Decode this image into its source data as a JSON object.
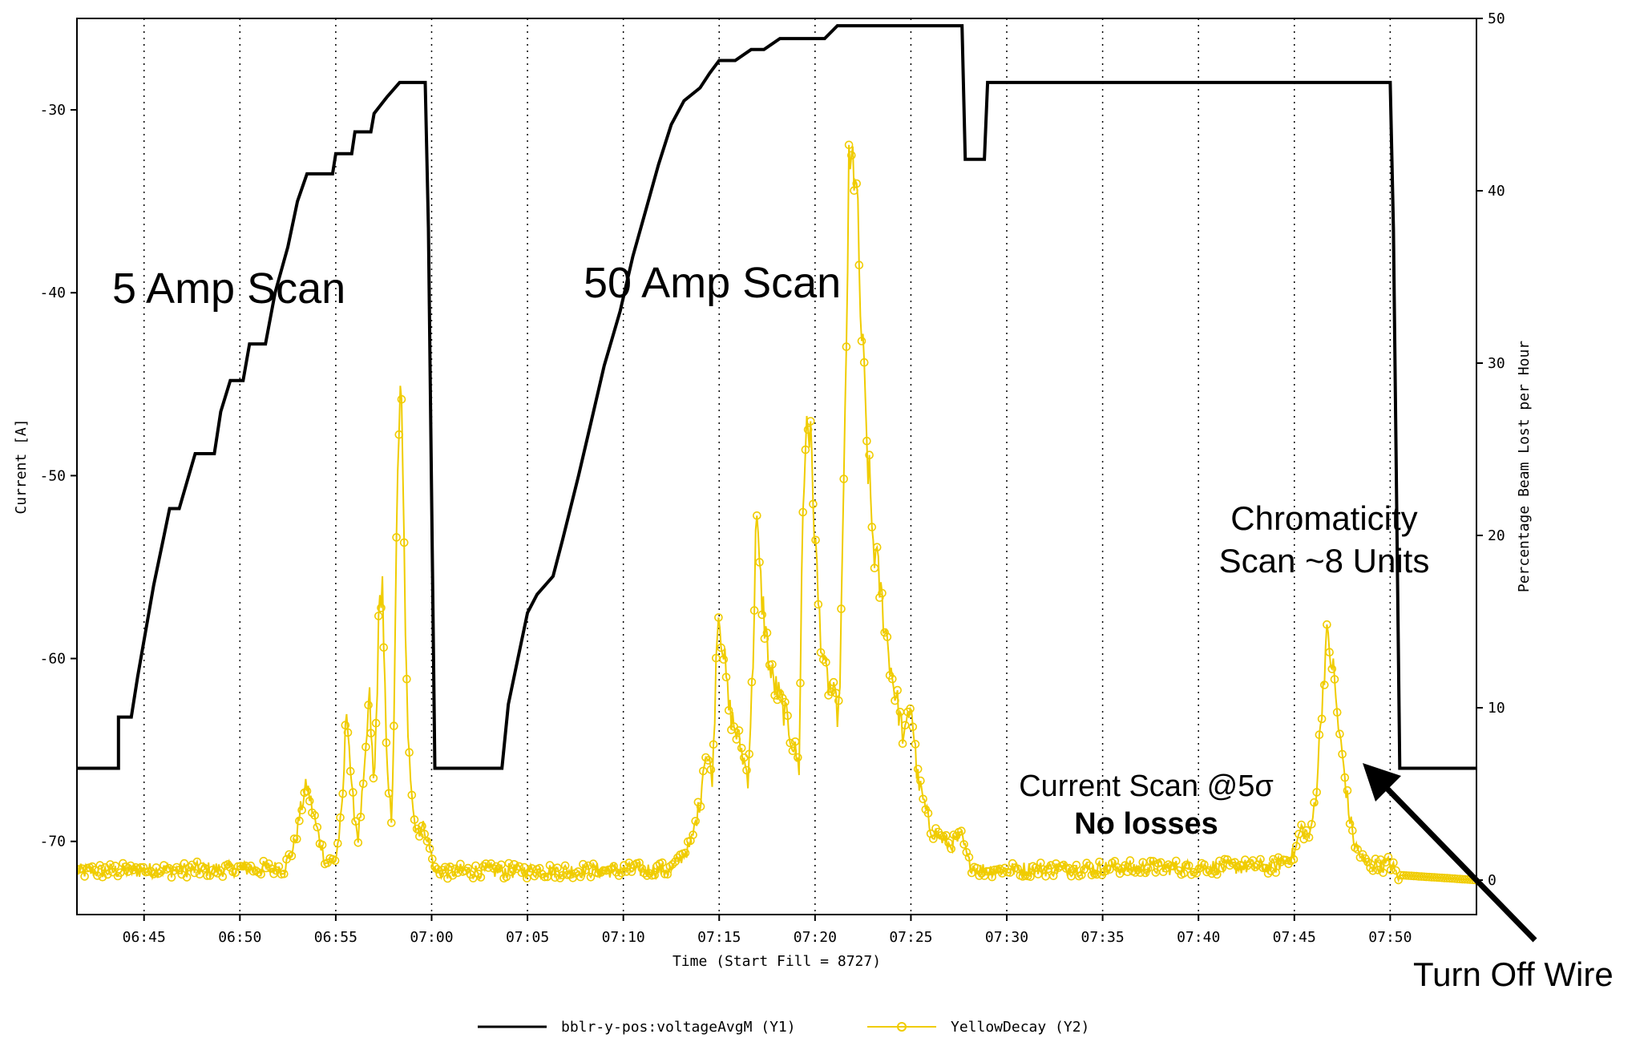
{
  "chart_data": {
    "type": "line",
    "title": "",
    "xlabel": "Time (Start Fill = 8727)",
    "ylabel": "Current [A]",
    "y2label": "Percentage Beam Lost per Hour",
    "xlim": [
      "06:41:30",
      "07:54:30"
    ],
    "ylim": [
      -74,
      -25
    ],
    "y2lim": [
      -2,
      50
    ],
    "x_ticks": [
      "06:45",
      "06:50",
      "06:55",
      "07:00",
      "07:05",
      "07:10",
      "07:15",
      "07:20",
      "07:25",
      "07:30",
      "07:35",
      "07:40",
      "07:45",
      "07:50"
    ],
    "y_ticks": [
      -30,
      -40,
      -50,
      -60,
      -70
    ],
    "y2_ticks": [
      0,
      10,
      20,
      30,
      40,
      50
    ],
    "grid": "vertical dotted at x ticks",
    "legend_position": "bottom-center",
    "series": [
      {
        "name": "bblr-y-pos:voltageAvgM (Y1)",
        "axis": "y1",
        "color": "#000000",
        "step": true,
        "points": [
          [
            "06:41:30",
            -66
          ],
          [
            "06:43:40",
            -66
          ],
          [
            "06:43:40",
            -63.2
          ],
          [
            "06:44:20",
            -63.2
          ],
          [
            "06:44:40",
            -61
          ],
          [
            "06:45:00",
            -59
          ],
          [
            "06:45:30",
            -56
          ],
          [
            "06:46:00",
            -53.5
          ],
          [
            "06:46:20",
            -51.8
          ],
          [
            "06:46:50",
            -51.8
          ],
          [
            "06:47:20",
            -50
          ],
          [
            "06:47:40",
            -48.8
          ],
          [
            "06:48:40",
            -48.8
          ],
          [
            "06:49:00",
            -46.5
          ],
          [
            "06:49:30",
            -44.8
          ],
          [
            "06:50:10",
            -44.8
          ],
          [
            "06:50:30",
            -42.8
          ],
          [
            "06:51:20",
            -42.8
          ],
          [
            "06:51:50",
            -40
          ],
          [
            "06:52:30",
            -37.5
          ],
          [
            "06:53:00",
            -35
          ],
          [
            "06:53:30",
            -33.5
          ],
          [
            "06:54:50",
            -33.5
          ],
          [
            "06:55:00",
            -32.4
          ],
          [
            "06:55:50",
            -32.4
          ],
          [
            "06:56:00",
            -31.2
          ],
          [
            "06:56:50",
            -31.2
          ],
          [
            "06:57:00",
            -30.2
          ],
          [
            "06:57:40",
            -29.3
          ],
          [
            "06:58:20",
            -28.5
          ],
          [
            "06:59:40",
            -28.5
          ],
          [
            "06:59:50",
            -36.5
          ],
          [
            "07:00:10",
            -66
          ],
          [
            "07:03:40",
            -66
          ],
          [
            "07:04:00",
            -62.5
          ],
          [
            "07:04:30",
            -60
          ],
          [
            "07:05:00",
            -57.5
          ],
          [
            "07:05:30",
            -56.5
          ],
          [
            "07:06:20",
            -55.5
          ],
          [
            "07:06:50",
            -53.5
          ],
          [
            "07:07:40",
            -50
          ],
          [
            "07:08:20",
            -47
          ],
          [
            "07:09:00",
            -44
          ],
          [
            "07:09:50",
            -41
          ],
          [
            "07:10:30",
            -38
          ],
          [
            "07:11:10",
            -35.5
          ],
          [
            "07:11:50",
            -33
          ],
          [
            "07:12:30",
            -30.8
          ],
          [
            "07:13:10",
            -29.5
          ],
          [
            "07:14:00",
            -28.8
          ],
          [
            "07:14:30",
            -28
          ],
          [
            "07:15:00",
            -27.3
          ],
          [
            "07:15:50",
            -27.3
          ],
          [
            "07:16:40",
            -26.7
          ],
          [
            "07:17:20",
            -26.7
          ],
          [
            "07:18:10",
            -26.1
          ],
          [
            "07:20:30",
            -26.1
          ],
          [
            "07:21:10",
            -25.4
          ],
          [
            "07:27:40",
            -25.4
          ],
          [
            "07:27:50",
            -32.7
          ],
          [
            "07:28:50",
            -32.7
          ],
          [
            "07:29:00",
            -28.5
          ],
          [
            "07:50:00",
            -28.5
          ],
          [
            "07:50:10",
            -36.5
          ],
          [
            "07:50:30",
            -66
          ],
          [
            "07:54:30",
            -66
          ]
        ]
      },
      {
        "name": "YellowDecay (Y2)",
        "axis": "y2",
        "color": "#f0cc00",
        "marker": "circle",
        "points": [
          [
            "06:41:30",
            0.5
          ],
          [
            "06:52:20",
            0.7
          ],
          [
            "06:52:50",
            2
          ],
          [
            "06:53:15",
            4.5
          ],
          [
            "06:53:30",
            5.5
          ],
          [
            "06:54:00",
            3
          ],
          [
            "06:54:30",
            1
          ],
          [
            "06:55:00",
            1.2
          ],
          [
            "06:55:20",
            4
          ],
          [
            "06:55:35",
            10.5
          ],
          [
            "06:55:50",
            5
          ],
          [
            "06:56:10",
            2.5
          ],
          [
            "06:56:30",
            6
          ],
          [
            "06:56:45",
            10.8
          ],
          [
            "06:57:00",
            5
          ],
          [
            "06:57:15",
            15
          ],
          [
            "06:57:25",
            18
          ],
          [
            "06:57:40",
            6
          ],
          [
            "06:57:55",
            3.5
          ],
          [
            "06:58:05",
            12
          ],
          [
            "06:58:15",
            26
          ],
          [
            "06:58:25",
            27.8
          ],
          [
            "06:58:35",
            18
          ],
          [
            "06:58:45",
            8
          ],
          [
            "06:59:10",
            3
          ],
          [
            "06:59:40",
            3
          ],
          [
            "07:00:10",
            0.5
          ],
          [
            "07:12:30",
            0.6
          ],
          [
            "07:13:30",
            2
          ],
          [
            "07:14:00",
            4.5
          ],
          [
            "07:14:15",
            7.5
          ],
          [
            "07:14:40",
            6
          ],
          [
            "07:14:55",
            16
          ],
          [
            "07:15:10",
            14
          ],
          [
            "07:15:30",
            10
          ],
          [
            "07:16:10",
            7.5
          ],
          [
            "07:16:30",
            6
          ],
          [
            "07:16:45",
            12
          ],
          [
            "07:16:55",
            21
          ],
          [
            "07:17:10",
            17
          ],
          [
            "07:17:40",
            12
          ],
          [
            "07:18:20",
            10
          ],
          [
            "07:18:50",
            8
          ],
          [
            "07:19:10",
            6.5
          ],
          [
            "07:19:20",
            20
          ],
          [
            "07:19:35",
            27.8
          ],
          [
            "07:19:50",
            24
          ],
          [
            "07:20:10",
            16
          ],
          [
            "07:20:30",
            12
          ],
          [
            "07:20:50",
            11
          ],
          [
            "07:21:15",
            9.5
          ],
          [
            "07:21:30",
            22
          ],
          [
            "07:21:45",
            40
          ],
          [
            "07:22:05",
            42
          ],
          [
            "07:22:20",
            34
          ],
          [
            "07:22:40",
            26
          ],
          [
            "07:23:00",
            20
          ],
          [
            "07:23:30",
            16
          ],
          [
            "07:24:00",
            12
          ],
          [
            "07:24:20",
            10
          ],
          [
            "07:24:40",
            8
          ],
          [
            "07:25:00",
            10.5
          ],
          [
            "07:25:20",
            6
          ],
          [
            "07:26:00",
            3
          ],
          [
            "07:27:00",
            2
          ],
          [
            "07:27:40",
            2.5
          ],
          [
            "07:28:00",
            1
          ],
          [
            "07:28:30",
            0.6
          ],
          [
            "07:44:00",
            0.8
          ],
          [
            "07:45:00",
            1.5
          ],
          [
            "07:45:20",
            3
          ],
          [
            "07:45:50",
            2.5
          ],
          [
            "07:46:10",
            5.5
          ],
          [
            "07:46:25",
            10
          ],
          [
            "07:46:40",
            14
          ],
          [
            "07:47:00",
            12.5
          ],
          [
            "07:47:20",
            8.5
          ],
          [
            "07:47:35",
            6.5
          ],
          [
            "07:47:50",
            4
          ],
          [
            "07:48:10",
            2
          ],
          [
            "07:48:40",
            1
          ],
          [
            "07:49:30",
            0.8
          ],
          [
            "07:50:00",
            1
          ],
          [
            "07:50:20",
            0.3
          ],
          [
            "07:54:30",
            0
          ]
        ]
      }
    ],
    "annotations": [
      {
        "text": "5 Amp Scan"
      },
      {
        "text": "50 Amp Scan"
      },
      {
        "text": "Chromaticity"
      },
      {
        "text": "Scan ~8 Units"
      },
      {
        "text": "Current Scan @5σ"
      },
      {
        "text": "No losses"
      },
      {
        "text": "Turn Off Wire"
      }
    ]
  }
}
